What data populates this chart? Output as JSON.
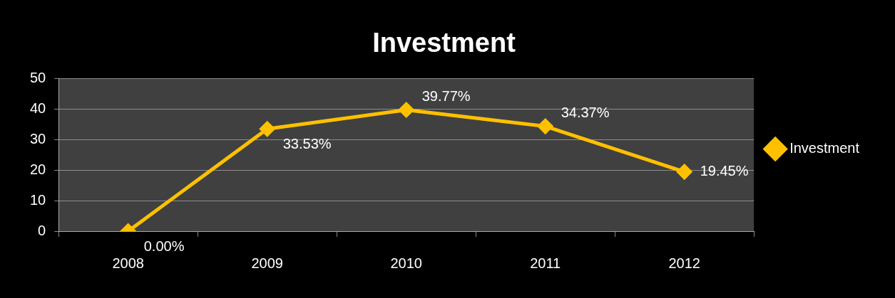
{
  "chart_data": {
    "type": "line",
    "title": "Investment",
    "categories": [
      "2008",
      "2009",
      "2010",
      "2011",
      "2012"
    ],
    "series": [
      {
        "name": "Investment",
        "color": "#ffc000",
        "values": [
          0,
          33.53,
          39.77,
          34.37,
          19.45
        ],
        "value_labels": [
          "0.00%",
          "33.53%",
          "39.77%",
          "34.37%",
          "19.45%"
        ]
      }
    ],
    "ylim": [
      0,
      50
    ],
    "yticks": [
      0,
      10,
      20,
      30,
      40,
      50
    ],
    "grid": "y",
    "legend": "right",
    "marker": "diamond",
    "line_style": "solid"
  }
}
